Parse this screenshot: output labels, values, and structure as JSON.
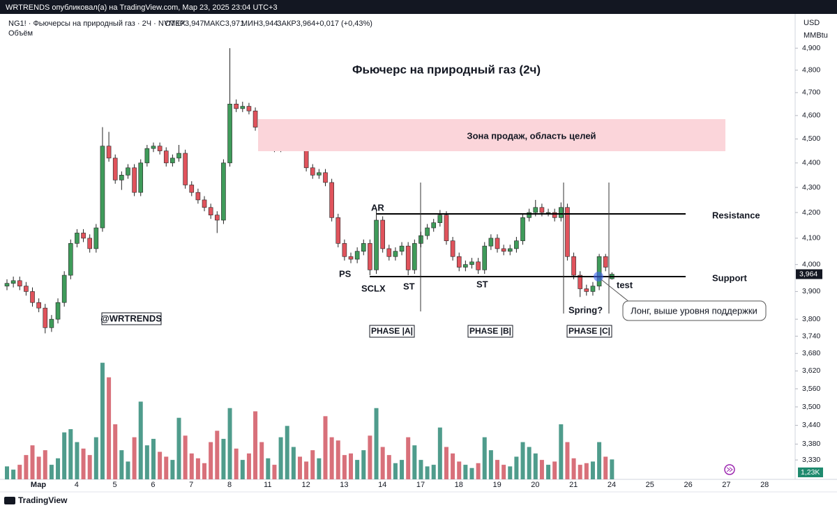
{
  "header": {
    "publisher": "WRTRENDS опубликовал(а) на TradingView.com, Мар 23, 2025 23:04 UTC+3"
  },
  "legend": {
    "symbol": "NG1! · Фьючерсы на природный газ · 2Ч · NYMEX",
    "open": "ОТКР3,947",
    "high": "МАКС3,971",
    "low": "МИН3,944",
    "close": "ЗАКР3,964",
    "change": "+0,017 (+0,43%)",
    "volume": "Объём"
  },
  "axis_units": {
    "currency": "USD",
    "unit": "MMBtu"
  },
  "footer": {
    "brand": "TradingView"
  },
  "annotations": {
    "title": "Фьючерс на природный газ (2ч)",
    "zone": "Зона продаж, область целей",
    "resistance": "Resistance",
    "support": "Support",
    "ar": "AR",
    "ps": "PS",
    "sclx": "SCLX",
    "st1": "ST",
    "st2": "ST",
    "spring": "Spring?",
    "test": "test",
    "author": "@WRTRENDS",
    "phase_a": "PHASE |A|",
    "phase_b": "PHASE |B|",
    "phase_c": "PHASE |C|",
    "callout": "Лонг, выше уровня поддержки"
  },
  "chart_data": {
    "type": "candlestick",
    "log_scale": true,
    "up_color": "#3f9b5a",
    "down_color": "#e0535c",
    "volume_up_color": "#4f9c8c",
    "volume_down_color": "#d8707a",
    "ylim": [
      3.27,
      5.06
    ],
    "yticks": [
      {
        "value": 4.9,
        "label": "4,900"
      },
      {
        "value": 4.8,
        "label": "4,800"
      },
      {
        "value": 4.7,
        "label": "4,700"
      },
      {
        "value": 4.6,
        "label": "4,600"
      },
      {
        "value": 4.5,
        "label": "4,500"
      },
      {
        "value": 4.4,
        "label": "4,400"
      },
      {
        "value": 4.3,
        "label": "4,300"
      },
      {
        "value": 4.2,
        "label": "4,200"
      },
      {
        "value": 4.1,
        "label": "4,100"
      },
      {
        "value": 4.0,
        "label": "4,000"
      },
      {
        "value": 3.9,
        "label": "3,900"
      },
      {
        "value": 3.8,
        "label": "3,800"
      },
      {
        "value": 3.74,
        "label": "3,740"
      },
      {
        "value": 3.68,
        "label": "3,680"
      },
      {
        "value": 3.62,
        "label": "3,620"
      },
      {
        "value": 3.56,
        "label": "3,560"
      },
      {
        "value": 3.5,
        "label": "3,500"
      },
      {
        "value": 3.44,
        "label": "3,440"
      },
      {
        "value": 3.38,
        "label": "3,380"
      },
      {
        "value": 3.33,
        "label": "3,330"
      }
    ],
    "x_labels": [
      "Мар",
      "4",
      "5",
      "6",
      "7",
      "8",
      "11",
      "12",
      "13",
      "14",
      "17",
      "18",
      "19",
      "20",
      "21",
      "24",
      "25",
      "26",
      "27",
      "28"
    ],
    "last_label": "3,964",
    "volume_lim": [
      0,
      7400
    ],
    "volume_last_label": "1,23K",
    "ohlc": [
      [
        3.92,
        3.945,
        3.905,
        3.93
      ],
      [
        3.93,
        3.955,
        3.915,
        3.94
      ],
      [
        3.94,
        3.955,
        3.905,
        3.92
      ],
      [
        3.92,
        3.935,
        3.885,
        3.9
      ],
      [
        3.9,
        3.915,
        3.845,
        3.86
      ],
      [
        3.86,
        3.875,
        3.825,
        3.84
      ],
      [
        3.84,
        3.855,
        3.75,
        3.77
      ],
      [
        3.77,
        3.815,
        3.755,
        3.8
      ],
      [
        3.8,
        3.875,
        3.785,
        3.86
      ],
      [
        3.86,
        3.975,
        3.845,
        3.96
      ],
      [
        3.96,
        4.095,
        3.945,
        4.08
      ],
      [
        4.08,
        4.135,
        4.065,
        4.12
      ],
      [
        4.12,
        4.135,
        4.085,
        4.1
      ],
      [
        4.1,
        4.115,
        4.045,
        4.06
      ],
      [
        4.06,
        4.155,
        4.045,
        4.14
      ],
      [
        4.14,
        4.55,
        4.125,
        4.47
      ],
      [
        4.47,
        4.53,
        4.405,
        4.42
      ],
      [
        4.42,
        4.435,
        4.315,
        4.33
      ],
      [
        4.33,
        4.365,
        4.29,
        4.35
      ],
      [
        4.35,
        4.395,
        4.335,
        4.38
      ],
      [
        4.38,
        4.395,
        4.265,
        4.28
      ],
      [
        4.28,
        4.415,
        4.265,
        4.4
      ],
      [
        4.4,
        4.475,
        4.385,
        4.46
      ],
      [
        4.46,
        4.485,
        4.445,
        4.47
      ],
      [
        4.47,
        4.485,
        4.435,
        4.45
      ],
      [
        4.45,
        4.465,
        4.385,
        4.4
      ],
      [
        4.4,
        4.435,
        4.385,
        4.42
      ],
      [
        4.42,
        4.475,
        4.405,
        4.44
      ],
      [
        4.44,
        4.455,
        4.295,
        4.31
      ],
      [
        4.31,
        4.325,
        4.265,
        4.28
      ],
      [
        4.28,
        4.295,
        4.235,
        4.25
      ],
      [
        4.25,
        4.265,
        4.205,
        4.22
      ],
      [
        4.22,
        4.235,
        4.175,
        4.19
      ],
      [
        4.19,
        4.205,
        4.12,
        4.17
      ],
      [
        4.17,
        4.415,
        4.155,
        4.4
      ],
      [
        4.4,
        4.9,
        4.385,
        4.65
      ],
      [
        4.65,
        4.67,
        4.615,
        4.63
      ],
      [
        4.63,
        4.66,
        4.615,
        4.64
      ],
      [
        4.64,
        4.655,
        4.605,
        4.62
      ],
      [
        4.62,
        4.635,
        4.535,
        4.55
      ],
      [
        4.55,
        4.565,
        4.455,
        4.47
      ],
      [
        4.47,
        4.515,
        4.455,
        4.5
      ],
      [
        4.5,
        4.515,
        4.445,
        4.46
      ],
      [
        4.46,
        4.495,
        4.445,
        4.48
      ],
      [
        4.48,
        4.535,
        4.465,
        4.52
      ],
      [
        4.52,
        4.58,
        4.505,
        4.55
      ],
      [
        4.55,
        4.565,
        4.455,
        4.47
      ],
      [
        4.47,
        4.485,
        4.365,
        4.38
      ],
      [
        4.38,
        4.395,
        4.335,
        4.35
      ],
      [
        4.35,
        4.375,
        4.335,
        4.36
      ],
      [
        4.36,
        4.375,
        4.305,
        4.32
      ],
      [
        4.32,
        4.335,
        4.165,
        4.18
      ],
      [
        4.18,
        4.195,
        4.065,
        4.08
      ],
      [
        4.08,
        4.095,
        4.015,
        4.03
      ],
      [
        4.03,
        4.045,
        4.005,
        4.02
      ],
      [
        4.02,
        4.065,
        4.005,
        4.05
      ],
      [
        4.05,
        4.095,
        4.035,
        4.08
      ],
      [
        4.08,
        4.095,
        3.96,
        3.98
      ],
      [
        3.98,
        4.21,
        3.965,
        4.17
      ],
      [
        4.17,
        4.185,
        4.045,
        4.06
      ],
      [
        4.06,
        4.075,
        4.015,
        4.03
      ],
      [
        4.03,
        4.065,
        4.015,
        4.05
      ],
      [
        4.05,
        4.085,
        4.035,
        4.07
      ],
      [
        4.07,
        4.085,
        3.96,
        3.98
      ],
      [
        3.98,
        4.095,
        3.965,
        4.08
      ],
      [
        4.08,
        4.125,
        4.065,
        4.11
      ],
      [
        4.11,
        4.155,
        4.095,
        4.14
      ],
      [
        4.14,
        4.175,
        4.125,
        4.16
      ],
      [
        4.16,
        4.21,
        4.145,
        4.19
      ],
      [
        4.19,
        4.205,
        4.075,
        4.09
      ],
      [
        4.09,
        4.105,
        4.015,
        4.03
      ],
      [
        4.03,
        4.045,
        3.975,
        3.99
      ],
      [
        3.99,
        4.015,
        3.975,
        4.0
      ],
      [
        4.0,
        4.025,
        3.985,
        4.01
      ],
      [
        4.01,
        4.025,
        3.965,
        3.98
      ],
      [
        3.98,
        4.085,
        3.965,
        4.07
      ],
      [
        4.07,
        4.115,
        4.055,
        4.1
      ],
      [
        4.1,
        4.115,
        4.045,
        4.06
      ],
      [
        4.06,
        4.075,
        4.035,
        4.05
      ],
      [
        4.05,
        4.075,
        4.035,
        4.06
      ],
      [
        4.06,
        4.105,
        4.045,
        4.09
      ],
      [
        4.09,
        4.195,
        4.075,
        4.18
      ],
      [
        4.18,
        4.215,
        4.165,
        4.2
      ],
      [
        4.2,
        4.25,
        4.185,
        4.22
      ],
      [
        4.22,
        4.235,
        4.185,
        4.2
      ],
      [
        4.2,
        4.215,
        4.185,
        4.2
      ],
      [
        4.2,
        4.215,
        4.165,
        4.18
      ],
      [
        4.18,
        4.24,
        4.165,
        4.22
      ],
      [
        4.22,
        4.235,
        4.015,
        4.03
      ],
      [
        4.03,
        4.045,
        3.945,
        3.96
      ],
      [
        3.96,
        3.975,
        3.88,
        3.91
      ],
      [
        3.91,
        3.925,
        3.885,
        3.9
      ],
      [
        3.9,
        3.935,
        3.885,
        3.92
      ],
      [
        3.92,
        4.04,
        3.905,
        4.03
      ],
      [
        4.03,
        4.04,
        3.975,
        3.99
      ],
      [
        3.947,
        3.971,
        3.944,
        3.964
      ]
    ],
    "volume": [
      800,
      600,
      900,
      1500,
      2100,
      1400,
      1800,
      900,
      1300,
      2900,
      3100,
      2300,
      1900,
      1500,
      2600,
      7200,
      6300,
      3400,
      1800,
      1100,
      2600,
      4800,
      2100,
      2500,
      1700,
      1400,
      1200,
      3800,
      2700,
      1600,
      1300,
      1000,
      2300,
      3000,
      2500,
      4400,
      1900,
      1200,
      1600,
      4200,
      2300,
      1300,
      900,
      2600,
      3300,
      2000,
      1400,
      1100,
      1800,
      1300,
      3900,
      2600,
      2400,
      1500,
      1600,
      1200,
      1800,
      2700,
      4400,
      2000,
      1500,
      1000,
      1200,
      2600,
      2100,
      1200,
      800,
      900,
      3200,
      2000,
      1600,
      1100,
      900,
      700,
      1000,
      2600,
      1800,
      1200,
      900,
      800,
      1400,
      2300,
      2000,
      1600,
      1200,
      900,
      1100,
      3400,
      2300,
      1300,
      900,
      1000,
      1100,
      2300,
      1400,
      1230
    ]
  }
}
